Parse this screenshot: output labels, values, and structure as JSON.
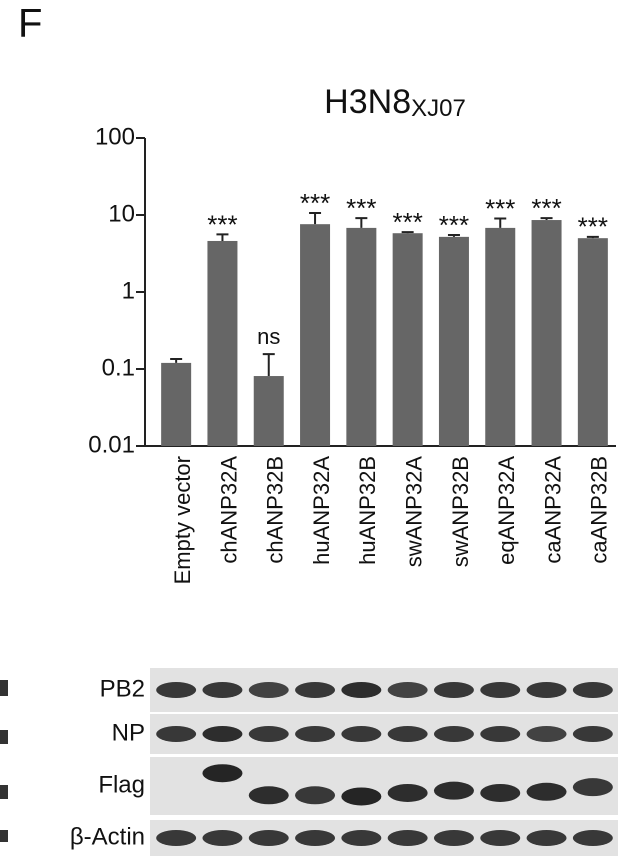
{
  "panel_label": "F",
  "chart_data": {
    "type": "bar",
    "title": "H3N8",
    "title_subscript": "XJ07",
    "categories": [
      "Empty vector",
      "chANP32A",
      "chANP32B",
      "huANP32A",
      "huANP32B",
      "swANP32A",
      "swANP32B",
      "eqANP32A",
      "caANP32A",
      "caANP32B"
    ],
    "values": [
      0.12,
      4.6,
      0.081,
      7.6,
      6.8,
      5.8,
      5.2,
      6.8,
      8.6,
      5.0
    ],
    "errors": [
      0.015,
      1.0,
      0.075,
      3.0,
      2.3,
      0.2,
      0.3,
      2.2,
      0.5,
      0.2
    ],
    "significance": [
      null,
      "***",
      "ns",
      "***",
      "***",
      "***",
      "***",
      "***",
      "***",
      "***"
    ],
    "color": "#666666",
    "log_scale": true,
    "ylim": [
      0.01,
      100
    ],
    "yticks": [
      0.01,
      0.1,
      1,
      10,
      100
    ],
    "grid": false
  },
  "blot": {
    "rows": [
      "PB2",
      "NP",
      "Flag",
      "β-Actin"
    ]
  }
}
